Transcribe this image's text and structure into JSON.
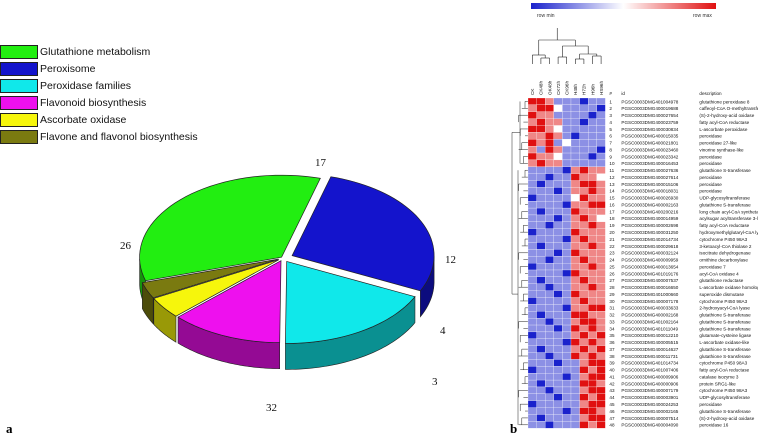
{
  "panel_a_label": "a",
  "panel_b_label": "b",
  "chart_data": [
    {
      "type": "pie",
      "style": "3d-exploded",
      "slices": [
        {
          "name": "Glutathione metabolism",
          "value": 32,
          "color": "#22ee11"
        },
        {
          "name": "Peroxisome",
          "value": 26,
          "color": "#1414cc"
        },
        {
          "name": "Peroxidase families",
          "value": 17,
          "color": "#10e8ea"
        },
        {
          "name": "Flavonoid biosynthesis",
          "value": 12,
          "color": "#ee10ee"
        },
        {
          "name": "Ascorbate oxidase",
          "value": 4,
          "color": "#f6f60c"
        },
        {
          "name": "Flavone and flavonol biosynthesis",
          "value": 3,
          "color": "#7a7a10"
        }
      ],
      "legend_position": "top-left"
    },
    {
      "type": "heatmap",
      "colorbar": {
        "min_label": "row min",
        "max_label": "row max",
        "min_color": "#1a22cc",
        "mid_color": "#ffffff",
        "max_color": "#e01010"
      },
      "columns": [
        "CK",
        "CK48h",
        "OK48h",
        "CK72h",
        "CK96h",
        "H48h",
        "H72h",
        "H96h",
        "HS96h"
      ],
      "header": {
        "num": "#",
        "id": "id",
        "description": "description"
      },
      "rows": [
        {
          "n": 1,
          "id": "PGSC0003DMG401004978",
          "desc": "glutathione peroxidase 8",
          "values": [
            2,
            2,
            1,
            -1,
            -1,
            -1,
            -2,
            -1,
            -1
          ]
        },
        {
          "n": 2,
          "id": "PGSC0003DMG400019688",
          "desc": "caffeoyl-CoA O-methyltransferase",
          "values": [
            1,
            2,
            2,
            0,
            -1,
            -1,
            -1,
            -1,
            -2
          ]
        },
        {
          "n": 3,
          "id": "PGSC0003DMG400027654",
          "desc": "(S)-2-hydroxy-acid oxidase",
          "values": [
            2,
            1,
            1,
            -1,
            -1,
            -1,
            -1,
            -2,
            -1
          ]
        },
        {
          "n": 4,
          "id": "PGSC0003DMG400023759",
          "desc": "fatty acyl-CoA reductase",
          "values": [
            1,
            2,
            1,
            1,
            -1,
            -1,
            -2,
            -1,
            -1
          ]
        },
        {
          "n": 5,
          "id": "PGSC0003DMG400030834",
          "desc": "L-ascorbate peroxidase",
          "values": [
            2,
            2,
            1,
            0,
            -1,
            -1,
            -1,
            -1,
            -1
          ]
        },
        {
          "n": 6,
          "id": "PGSC0003DMG400015035",
          "desc": "peroxidase",
          "values": [
            1,
            1,
            2,
            1,
            -1,
            -2,
            -1,
            -1,
            -1
          ]
        },
        {
          "n": 7,
          "id": "PGSC0003DMG400021801",
          "desc": "peroxidase 27-like",
          "values": [
            2,
            1,
            2,
            -1,
            0,
            -1,
            -1,
            -1,
            -1
          ]
        },
        {
          "n": 8,
          "id": "PGSC0003DMG400023460",
          "desc": "vinorine synthase-like",
          "values": [
            1,
            -1,
            2,
            1,
            -1,
            -1,
            -1,
            -1,
            -2
          ]
        },
        {
          "n": 9,
          "id": "PGSC0003DMG400023342",
          "desc": "peroxidase",
          "values": [
            2,
            1,
            1,
            0,
            -1,
            -1,
            -1,
            -2,
            -1
          ]
        },
        {
          "n": 10,
          "id": "PGSC0003DMG400016453",
          "desc": "peroxidase",
          "values": [
            1,
            2,
            1,
            1,
            -1,
            -1,
            -1,
            -1,
            -1
          ]
        },
        {
          "n": 11,
          "id": "PGSC0003DMG400027636",
          "desc": "glutathione S-transferase",
          "values": [
            -1,
            -1,
            -1,
            -1,
            -2,
            1,
            2,
            1,
            1
          ]
        },
        {
          "n": 12,
          "id": "PGSC0003DMG400027614",
          "desc": "peroxidase",
          "values": [
            -1,
            -1,
            -2,
            -1,
            -1,
            2,
            1,
            1,
            0
          ]
        },
        {
          "n": 13,
          "id": "PGSC0003DMG400015106",
          "desc": "peroxidase",
          "values": [
            -1,
            -2,
            -1,
            -1,
            -1,
            1,
            2,
            2,
            1
          ]
        },
        {
          "n": 14,
          "id": "PGSC0003DMG400018031",
          "desc": "peroxidase",
          "values": [
            -1,
            -1,
            -1,
            -2,
            -1,
            1,
            1,
            2,
            1
          ]
        },
        {
          "n": 15,
          "id": "PGSC0003DMG400026930",
          "desc": "UDP-glycosyltransferase",
          "values": [
            -2,
            -1,
            -1,
            -1,
            -1,
            0,
            2,
            1,
            1
          ]
        },
        {
          "n": 16,
          "id": "PGSC0003DMG400002163",
          "desc": "glutathione S-transferase",
          "values": [
            -1,
            -1,
            -1,
            -1,
            -2,
            1,
            1,
            2,
            2
          ]
        },
        {
          "n": 17,
          "id": "PGSC0003DMG400200216",
          "desc": "long chain acyl-CoA synthetase 4-like",
          "values": [
            -1,
            -2,
            -1,
            -1,
            -1,
            2,
            1,
            1,
            1
          ]
        },
        {
          "n": 18,
          "id": "PGSC0003DMG400014959",
          "desc": "acylsugar acyltransferase 3-like",
          "values": [
            -1,
            -1,
            -1,
            -2,
            -1,
            1,
            2,
            1,
            0
          ]
        },
        {
          "n": 19,
          "id": "PGSC0003DMG400002698",
          "desc": "fatty acyl-CoA reductase",
          "values": [
            -1,
            -1,
            -2,
            -1,
            -1,
            1,
            1,
            2,
            1
          ]
        },
        {
          "n": 20,
          "id": "PGSC0003DMG400031250",
          "desc": "hydroxymethylglutaryl-CoA lyase",
          "values": [
            -2,
            -1,
            -1,
            -1,
            -1,
            2,
            1,
            1,
            1
          ]
        },
        {
          "n": 21,
          "id": "PGSC0003DMG402014734",
          "desc": "cytochrome P450 98A3",
          "values": [
            -1,
            -1,
            -1,
            -1,
            -2,
            1,
            2,
            1,
            1
          ]
        },
        {
          "n": 22,
          "id": "PGSC0003DMG400029618",
          "desc": "3-ketoacyl-CoA thiolase 2",
          "values": [
            -1,
            -2,
            -1,
            -1,
            -1,
            1,
            1,
            2,
            1
          ]
        },
        {
          "n": 23,
          "id": "PGSC0003DMG400032124",
          "desc": "isocitrate dehydrogenase",
          "values": [
            -1,
            -1,
            -1,
            -2,
            -1,
            2,
            1,
            1,
            1
          ]
        },
        {
          "n": 24,
          "id": "PGSC0003DMG400009959",
          "desc": "ornithine decarboxylase",
          "values": [
            -1,
            -1,
            -2,
            -1,
            -1,
            1,
            2,
            1,
            1
          ]
        },
        {
          "n": 25,
          "id": "PGSC0003DMG400013654",
          "desc": "peroxidase 7",
          "values": [
            -2,
            -1,
            -1,
            -1,
            -1,
            1,
            1,
            2,
            1
          ]
        },
        {
          "n": 26,
          "id": "PGSC0003DMG401019176",
          "desc": "acyl-CoA oxidase 4",
          "values": [
            -1,
            -1,
            -1,
            -1,
            -2,
            2,
            1,
            1,
            1
          ]
        },
        {
          "n": 27,
          "id": "PGSC0003DMG400007537",
          "desc": "glutathione reductase",
          "values": [
            -1,
            -2,
            -1,
            -1,
            -1,
            1,
            2,
            1,
            1
          ]
        },
        {
          "n": 28,
          "id": "PGSC0003DMG400016650",
          "desc": "L-ascorbate oxidase homolog",
          "values": [
            -1,
            -1,
            -2,
            -1,
            -1,
            1,
            1,
            2,
            1
          ]
        },
        {
          "n": 29,
          "id": "PGSC0003DMG401000660",
          "desc": "superoxide dismutase",
          "values": [
            -1,
            -1,
            -1,
            -2,
            -1,
            2,
            1,
            1,
            1
          ]
        },
        {
          "n": 30,
          "id": "PGSC0003DMG400007178",
          "desc": "cytochrome P450 98A3",
          "values": [
            -2,
            -1,
            -1,
            -1,
            -1,
            1,
            2,
            1,
            1
          ]
        },
        {
          "n": 31,
          "id": "PGSC0003DMG400033633",
          "desc": "2-hydroxyacyl-CoA lyase",
          "values": [
            -1,
            -1,
            -1,
            -1,
            -2,
            1,
            1,
            2,
            2
          ]
        },
        {
          "n": 32,
          "id": "PGSC0003DMG400002168",
          "desc": "glutathione S-transferase",
          "values": [
            -1,
            -2,
            -1,
            -1,
            -1,
            2,
            2,
            1,
            1
          ]
        },
        {
          "n": 33,
          "id": "PGSC0003DMG401002164",
          "desc": "glutathione S-transferase",
          "values": [
            -1,
            -1,
            -2,
            -1,
            -1,
            1,
            2,
            2,
            1
          ]
        },
        {
          "n": 34,
          "id": "PGSC0003DMG401011049",
          "desc": "glutathione S-transferase",
          "values": [
            -1,
            -1,
            -1,
            -2,
            -1,
            2,
            1,
            2,
            1
          ]
        },
        {
          "n": 35,
          "id": "PGSC0003DMG400012210",
          "desc": "glutamate-cysteine ligase",
          "values": [
            -2,
            -1,
            -1,
            -1,
            -1,
            1,
            2,
            1,
            2
          ]
        },
        {
          "n": 36,
          "id": "PGSC0003DMG400005515",
          "desc": "L-ascorbate oxidase-like",
          "values": [
            -1,
            -1,
            -1,
            -1,
            -2,
            2,
            1,
            2,
            1
          ]
        },
        {
          "n": 37,
          "id": "PGSC0003DMG400014627",
          "desc": "glutathione S-transferase",
          "values": [
            -1,
            -2,
            -1,
            -1,
            -1,
            1,
            2,
            1,
            2
          ]
        },
        {
          "n": 38,
          "id": "PGSC0003DMG400011731",
          "desc": "glutathione S-transferase",
          "values": [
            -1,
            -1,
            -2,
            -1,
            -1,
            2,
            1,
            2,
            1
          ]
        },
        {
          "n": 39,
          "id": "PGSC0003DMG401014734",
          "desc": "cytochrome P450 98A3",
          "values": [
            -1,
            -1,
            -1,
            -2,
            -1,
            -1,
            1,
            2,
            2
          ]
        },
        {
          "n": 40,
          "id": "PGSC0003DMG401007406",
          "desc": "fatty acyl-CoA reductase",
          "values": [
            -2,
            -1,
            -1,
            -1,
            -1,
            -1,
            2,
            1,
            2
          ]
        },
        {
          "n": 41,
          "id": "PGSC0003DMG400009906",
          "desc": "catalase isozyme 3",
          "values": [
            -1,
            -1,
            -1,
            -1,
            -2,
            -1,
            1,
            2,
            2
          ]
        },
        {
          "n": 42,
          "id": "PGSC0003DMG400000906",
          "desc": "protein SRG1-like",
          "values": [
            -1,
            -2,
            -1,
            -1,
            -1,
            -1,
            2,
            2,
            1
          ]
        },
        {
          "n": 43,
          "id": "PGSC0003DMG400007179",
          "desc": "cytochrome P450 98A3",
          "values": [
            -1,
            -1,
            -2,
            -1,
            -1,
            -1,
            1,
            2,
            2
          ]
        },
        {
          "n": 44,
          "id": "PGSC0003DMG400003901",
          "desc": "UDP-glycosyltransferase",
          "values": [
            -1,
            -1,
            -1,
            -2,
            -1,
            -1,
            2,
            1,
            2
          ]
        },
        {
          "n": 45,
          "id": "PGSC0003DMG400024253",
          "desc": "peroxidase",
          "values": [
            -2,
            -1,
            -1,
            -1,
            -1,
            -1,
            1,
            2,
            2
          ]
        },
        {
          "n": 46,
          "id": "PGSC0003DMG400002165",
          "desc": "glutathione S-transferase",
          "values": [
            -1,
            -1,
            -1,
            -1,
            -2,
            -1,
            2,
            2,
            1
          ]
        },
        {
          "n": 47,
          "id": "PGSC0003DMG400007514",
          "desc": "(S)-2-hydroxy-acid oxidase",
          "values": [
            -1,
            -2,
            -1,
            -1,
            -1,
            -1,
            1,
            2,
            2
          ]
        },
        {
          "n": 48,
          "id": "PGSC0003DMG400004090",
          "desc": "peroxidase 16",
          "values": [
            -1,
            -1,
            -2,
            -1,
            -1,
            -1,
            2,
            1,
            2
          ]
        }
      ]
    }
  ]
}
